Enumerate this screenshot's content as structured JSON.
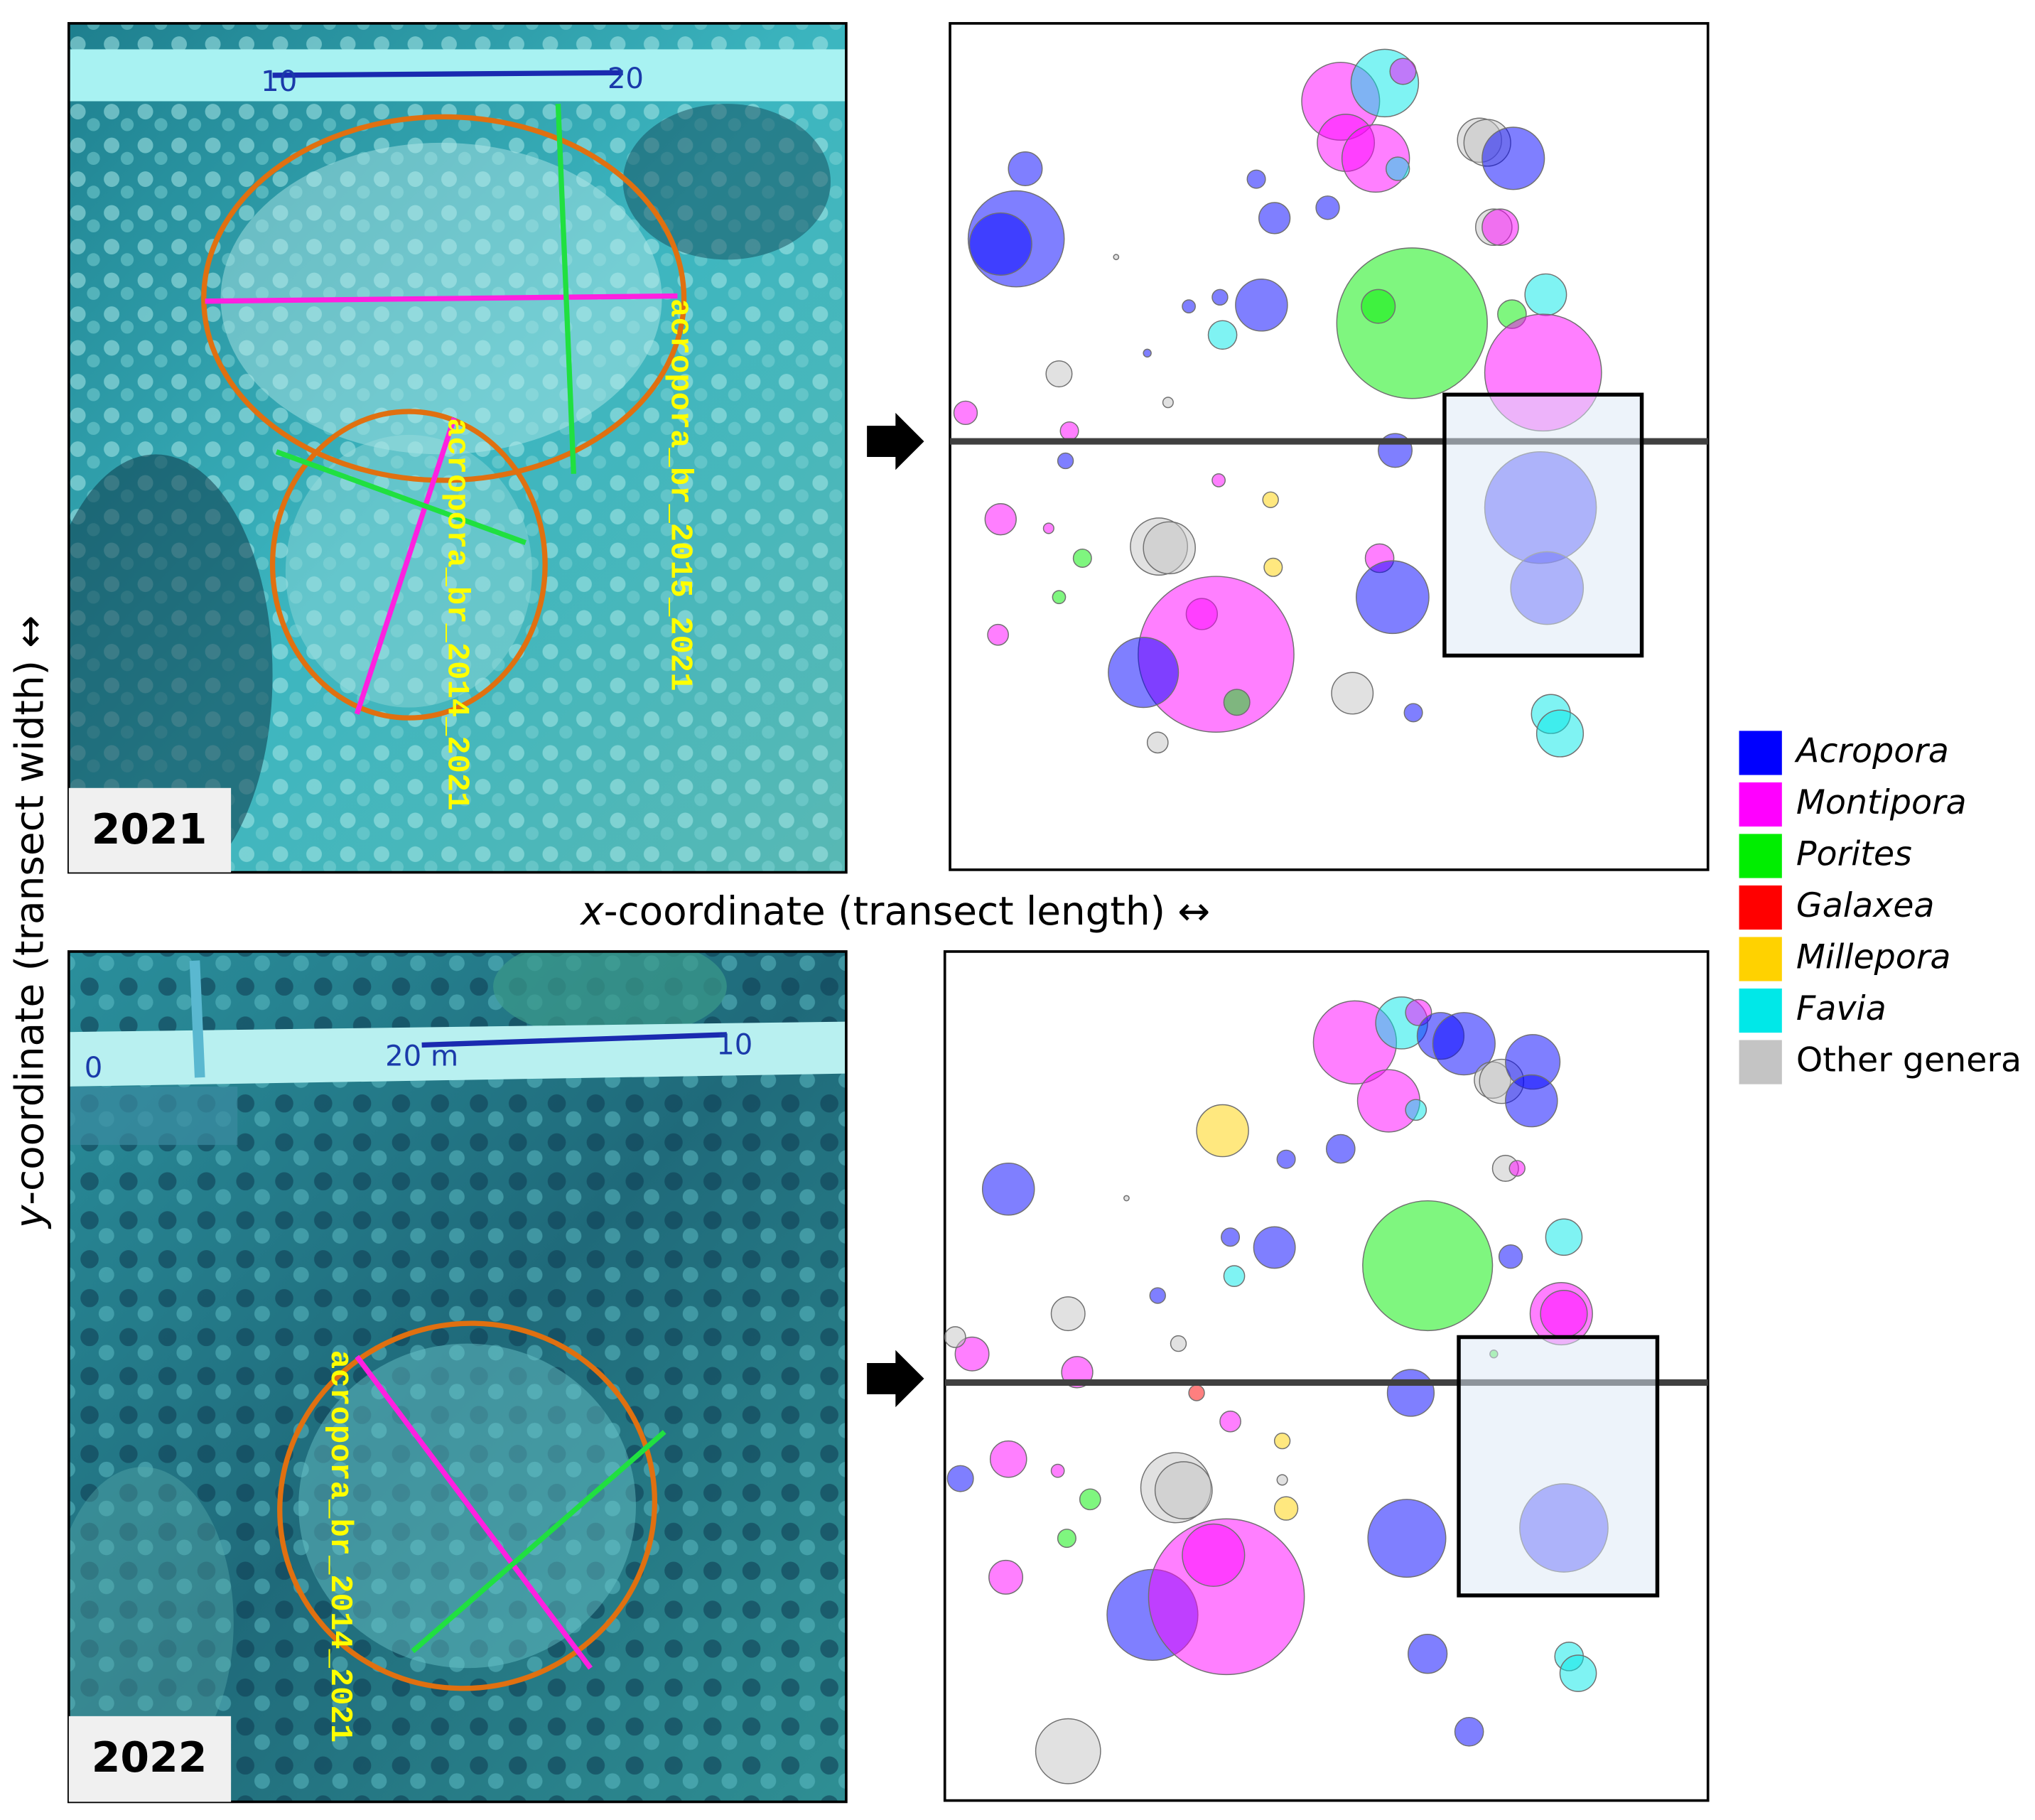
{
  "photos": [
    {
      "year": "2021",
      "tags": [
        "acropora_br_2015_2021",
        "acropora_br_2014_2021"
      ],
      "ruler": [
        "10",
        "20"
      ]
    },
    {
      "year": "2022",
      "tags": [
        "acropora_br_2014_2021"
      ],
      "ruler": [
        "0",
        "20 m",
        "10"
      ]
    }
  ],
  "axes": {
    "x": {
      "var": "x",
      "text": "-coordinate (transect length) ↔"
    },
    "y": {
      "var": "y",
      "text": "-coordinate (transect width) ↔"
    }
  },
  "legend": [
    {
      "name": "Acropora",
      "color": "#0000ff",
      "italic": true
    },
    {
      "name": "Montipora",
      "color": "#ff00ff",
      "italic": true
    },
    {
      "name": "Porites",
      "color": "#00ee00",
      "italic": true
    },
    {
      "name": "Galaxea",
      "color": "#ff0000",
      "italic": true
    },
    {
      "name": "Millepora",
      "color": "#ffd200",
      "italic": true
    },
    {
      "name": "Favia",
      "color": "#00e8e8",
      "italic": true
    },
    {
      "name": "Other genera",
      "color": "#c4c4c4",
      "italic": false
    }
  ]
}
